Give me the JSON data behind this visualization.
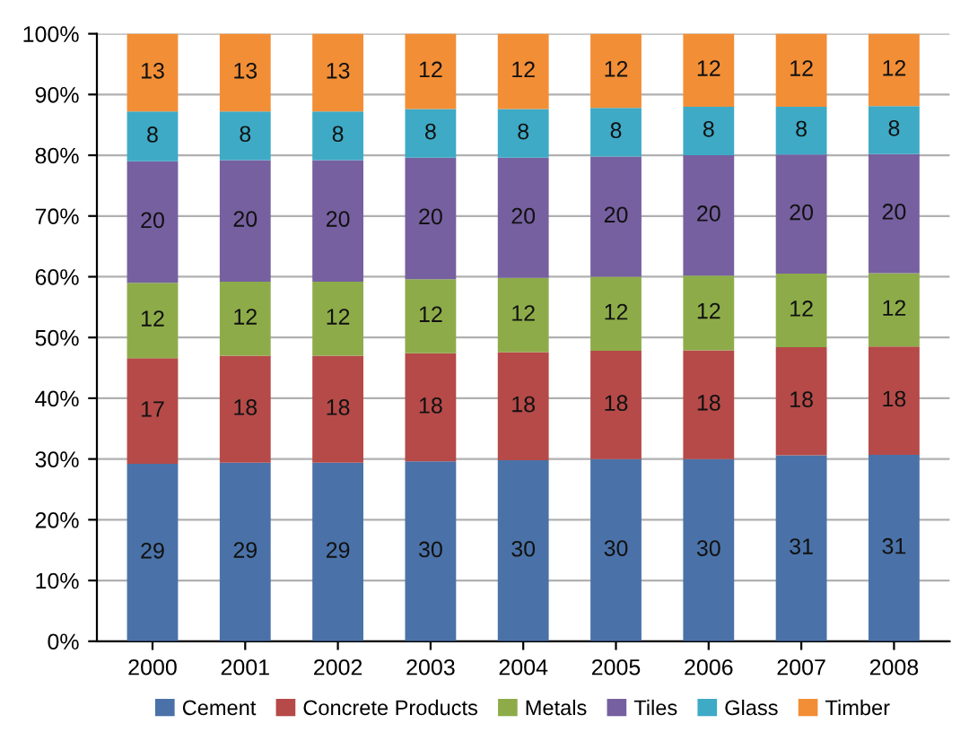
{
  "chart_data": {
    "type": "bar",
    "stacked": true,
    "categories": [
      "2000",
      "2001",
      "2002",
      "2003",
      "2004",
      "2005",
      "2006",
      "2007",
      "2008"
    ],
    "series": [
      {
        "name": "Cement",
        "color": "#4a72a8",
        "values": [
          29.2,
          29.4,
          29.4,
          29.6,
          29.8,
          30.0,
          30.0,
          30.6,
          30.7
        ],
        "value_labels": [
          "29",
          "29",
          "29",
          "30",
          "30",
          "30",
          "30",
          "31",
          "31"
        ]
      },
      {
        "name": "Concrete Products",
        "color": "#b54a48",
        "values": [
          17.4,
          17.6,
          17.6,
          17.8,
          17.8,
          17.8,
          17.9,
          17.8,
          17.8
        ],
        "value_labels": [
          "17",
          "18",
          "18",
          "18",
          "18",
          "18",
          "18",
          "18",
          "18"
        ]
      },
      {
        "name": "Metals",
        "color": "#8dac49",
        "values": [
          12.4,
          12.2,
          12.2,
          12.2,
          12.2,
          12.2,
          12.3,
          12.1,
          12.1
        ],
        "value_labels": [
          "12",
          "12",
          "12",
          "12",
          "12",
          "12",
          "12",
          "12",
          "12"
        ]
      },
      {
        "name": "Tiles",
        "color": "#7660a0",
        "values": [
          20.0,
          20.0,
          20.0,
          20.0,
          19.8,
          19.8,
          19.8,
          19.6,
          19.6
        ],
        "value_labels": [
          "20",
          "20",
          "20",
          "20",
          "20",
          "20",
          "20",
          "20",
          "20"
        ]
      },
      {
        "name": "Glass",
        "color": "#3eaac6",
        "values": [
          8.2,
          8.0,
          8.0,
          8.0,
          8.0,
          8.0,
          8.0,
          7.9,
          7.9
        ],
        "value_labels": [
          "8",
          "8",
          "8",
          "8",
          "8",
          "8",
          "8",
          "8",
          "8"
        ]
      },
      {
        "name": "Timber",
        "color": "#f28e36",
        "values": [
          12.8,
          12.8,
          12.8,
          12.4,
          12.4,
          12.2,
          12.0,
          12.0,
          11.9
        ],
        "value_labels": [
          "13",
          "13",
          "13",
          "12",
          "12",
          "12",
          "12",
          "12",
          "12"
        ]
      }
    ],
    "ylim": [
      0,
      100
    ],
    "yticks": [
      {
        "value": 0,
        "label": "0%"
      },
      {
        "value": 10,
        "label": "10%"
      },
      {
        "value": 20,
        "label": "20%"
      },
      {
        "value": 30,
        "label": "30%"
      },
      {
        "value": 40,
        "label": "40%"
      },
      {
        "value": 50,
        "label": "50%"
      },
      {
        "value": 60,
        "label": "60%"
      },
      {
        "value": 70,
        "label": "70%"
      },
      {
        "value": 80,
        "label": "80%"
      },
      {
        "value": 90,
        "label": "90%"
      },
      {
        "value": 100,
        "label": "100%"
      }
    ],
    "grid": "y",
    "legend": "bottom"
  }
}
